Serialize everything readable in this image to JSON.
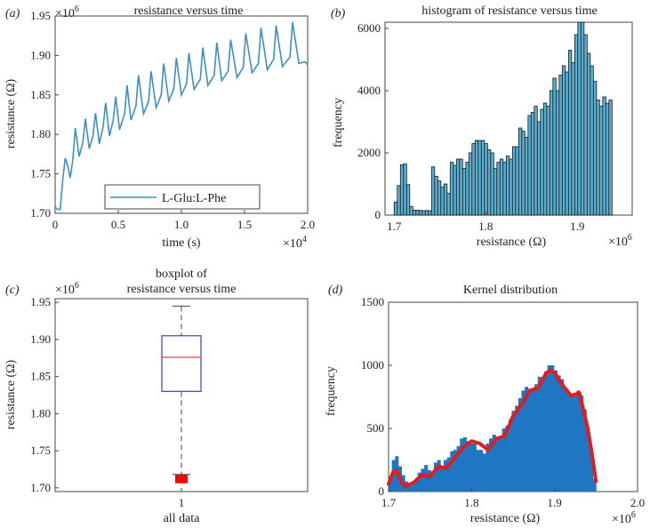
{
  "chart_data": [
    {
      "id": "a",
      "type": "line",
      "panel_label": "(a)",
      "title": "resistance versus time",
      "xlabel": "time (s)",
      "ylabel": "resistance (Ω)",
      "x_exponent_label": "×10",
      "x_exponent": "4",
      "y_exponent_label": "×10",
      "y_exponent": "6",
      "xlim": [
        0,
        2.0
      ],
      "ylim": [
        1.7,
        1.95
      ],
      "xticks": [
        "0",
        "0.5",
        "1.0",
        "1.5",
        "2.0"
      ],
      "xtick_values": [
        0,
        0.5,
        1.0,
        1.5,
        2.0
      ],
      "yticks": [
        "1.70",
        "1.75",
        "1.80",
        "1.85",
        "1.90",
        "1.95"
      ],
      "ytick_values": [
        1.7,
        1.75,
        1.8,
        1.85,
        1.9,
        1.95
      ],
      "legend": "L-Glu:L-Phe",
      "line_color": "#3d8fc6",
      "series": [
        {
          "name": "L-Glu:L-Phe",
          "x": [
            0,
            0.02,
            0.04,
            0.06,
            0.08,
            0.1,
            0.12,
            0.14,
            0.16,
            0.19,
            0.22,
            0.24,
            0.27,
            0.3,
            0.32,
            0.35,
            0.38,
            0.4,
            0.43,
            0.46,
            0.48,
            0.51,
            0.55,
            0.57,
            0.6,
            0.64,
            0.66,
            0.7,
            0.74,
            0.76,
            0.8,
            0.84,
            0.86,
            0.9,
            0.94,
            0.96,
            1.0,
            1.04,
            1.06,
            1.1,
            1.15,
            1.17,
            1.21,
            1.26,
            1.28,
            1.32,
            1.37,
            1.39,
            1.44,
            1.49,
            1.51,
            1.56,
            1.61,
            1.63,
            1.68,
            1.73,
            1.75,
            1.8,
            1.86,
            1.88,
            1.93,
            1.98,
            2.0
          ],
          "y": [
            1.708,
            1.705,
            1.705,
            1.742,
            1.77,
            1.76,
            1.745,
            1.768,
            1.808,
            1.772,
            1.79,
            1.82,
            1.782,
            1.798,
            1.827,
            1.788,
            1.81,
            1.84,
            1.798,
            1.818,
            1.848,
            1.806,
            1.826,
            1.862,
            1.818,
            1.836,
            1.875,
            1.826,
            1.842,
            1.88,
            1.834,
            1.85,
            1.89,
            1.842,
            1.858,
            1.897,
            1.85,
            1.864,
            1.903,
            1.857,
            1.87,
            1.91,
            1.862,
            1.875,
            1.916,
            1.868,
            1.88,
            1.92,
            1.872,
            1.885,
            1.928,
            1.878,
            1.89,
            1.935,
            1.882,
            1.895,
            1.938,
            1.886,
            1.898,
            1.942,
            1.89,
            1.892,
            1.888
          ]
        }
      ]
    },
    {
      "id": "b",
      "type": "bar",
      "panel_label": "(b)",
      "title": "histogram of resistance versus time",
      "xlabel": "resistance (Ω)",
      "ylabel": "frequency",
      "x_exponent_label": "×10",
      "x_exponent": "6",
      "xlim": [
        1.69,
        1.96
      ],
      "ylim": [
        0,
        6200
      ],
      "xticks": [
        "1.7",
        "1.8",
        "1.9"
      ],
      "xtick_values": [
        1.7,
        1.8,
        1.9
      ],
      "yticks": [
        "0",
        "2000",
        "4000",
        "6000"
      ],
      "ytick_values": [
        0,
        2000,
        4000,
        6000
      ],
      "bar_color": "#5bb0d3",
      "bin_start": 1.7,
      "bin_width": 0.0034,
      "values": [
        420,
        950,
        1620,
        1650,
        980,
        280,
        160,
        160,
        150,
        140,
        150,
        140,
        1550,
        1250,
        1100,
        900,
        1000,
        700,
        1700,
        1600,
        1800,
        1800,
        1500,
        1700,
        2000,
        2300,
        2400,
        2400,
        2400,
        2300,
        2100,
        2000,
        1500,
        1700,
        1800,
        1700,
        1900,
        1800,
        2200,
        2200,
        2800,
        2700,
        2500,
        3200,
        3300,
        3500,
        3000,
        3400,
        3600,
        3500,
        4000,
        4400,
        4000,
        4500,
        4800,
        4600,
        5300,
        4900,
        5800,
        6200,
        6200,
        5800,
        5200,
        4800,
        4300,
        3700,
        3500,
        3800,
        3600,
        3700
      ],
      "series_note": "approximate per-bin counts"
    },
    {
      "id": "c",
      "type": "box",
      "panel_label": "(c)",
      "title_line1": "boxplot of",
      "title_line2": "resistance versus time",
      "ylabel": "resistance (Ω)",
      "y_exponent_label": "×10",
      "y_exponent": "6",
      "ylim": [
        1.695,
        1.955
      ],
      "yticks": [
        "1.70",
        "1.75",
        "1.80",
        "1.85",
        "1.90",
        "1.95"
      ],
      "ytick_values": [
        1.7,
        1.75,
        1.8,
        1.85,
        1.9,
        1.95
      ],
      "category": "1",
      "category_label": "all data",
      "box": {
        "whisker_low": 1.718,
        "q1": 1.83,
        "median": 1.876,
        "q3": 1.905,
        "whisker_high": 1.945
      },
      "outliers_low": [
        1.708,
        1.71,
        1.712,
        1.714,
        1.716
      ],
      "box_color": "#3a3ae0",
      "median_color": "#e03030",
      "outlier_color": "#ff0000"
    },
    {
      "id": "d",
      "type": "area",
      "panel_label": "(d)",
      "title": "Kernel distribution",
      "xlabel": "resistance (Ω)",
      "ylabel": "frequency",
      "x_exponent_label": "×10",
      "x_exponent": "6",
      "xlim": [
        1.7,
        2.0
      ],
      "ylim": [
        0,
        1500
      ],
      "xticks": [
        "1.7",
        "1.8",
        "1.9",
        "2.0"
      ],
      "xtick_values": [
        1.7,
        1.8,
        1.9,
        2.0
      ],
      "yticks": [
        "0",
        "500",
        "1000",
        "1500"
      ],
      "ytick_values": [
        0,
        500,
        1000,
        1500
      ],
      "hist_color": "#1f77c4",
      "kde_color": "#e41a1c",
      "kde": {
        "x": [
          1.7,
          1.705,
          1.71,
          1.715,
          1.72,
          1.73,
          1.74,
          1.75,
          1.76,
          1.77,
          1.78,
          1.79,
          1.8,
          1.81,
          1.82,
          1.83,
          1.84,
          1.85,
          1.86,
          1.87,
          1.88,
          1.89,
          1.895,
          1.9,
          1.91,
          1.92,
          1.93,
          1.94,
          1.945,
          1.95
        ],
        "y": [
          60,
          150,
          165,
          80,
          40,
          70,
          130,
          120,
          200,
          185,
          270,
          350,
          400,
          380,
          330,
          420,
          440,
          600,
          680,
          800,
          820,
          940,
          960,
          940,
          840,
          760,
          780,
          500,
          300,
          80
        ]
      },
      "hist_values": [
        120,
        250,
        280,
        200,
        130,
        80,
        60,
        60,
        90,
        150,
        180,
        210,
        170,
        160,
        230,
        250,
        200,
        250,
        270,
        320,
        330,
        360,
        420,
        430,
        400,
        380,
        380,
        330,
        330,
        300,
        380,
        420,
        450,
        420,
        430,
        500,
        520,
        570,
        640,
        680,
        740,
        800,
        830,
        810,
        820,
        850,
        910,
        900,
        950,
        1000,
        1000,
        960,
        920,
        890,
        820,
        780,
        760,
        780,
        800,
        760,
        650,
        500,
        300,
        100
      ]
    }
  ]
}
